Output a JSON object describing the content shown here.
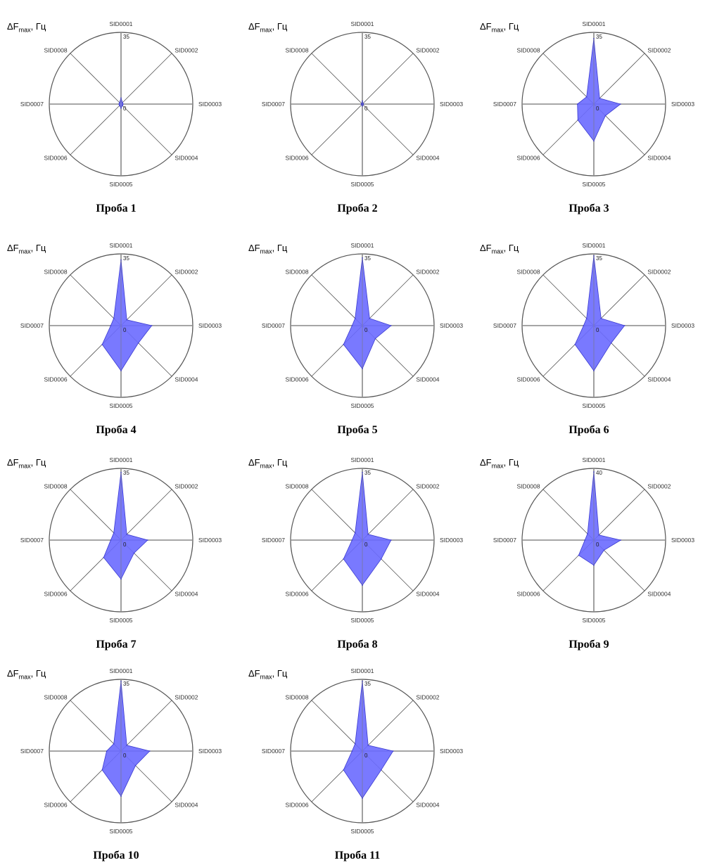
{
  "axis_label": {
    "prefix": "ΔF",
    "sub": "max",
    "suffix": ", Гц"
  },
  "colors": {
    "fill": "#6a6aff",
    "stroke": "#3a3ad0",
    "grid": "#555555",
    "axis": "#888888"
  },
  "chart_data": [
    {
      "type": "radar",
      "caption": "Проба 1",
      "categories": [
        "SID0001",
        "SID0002",
        "SID0003",
        "SID0004",
        "SID0005",
        "SID0006",
        "SID0007",
        "SID0008"
      ],
      "values": [
        3,
        1,
        1,
        1,
        2,
        1,
        1,
        1
      ],
      "tick_min": "0",
      "tick_max": "35",
      "rmax": 35
    },
    {
      "type": "radar",
      "caption": "Проба 2",
      "categories": [
        "SID0001",
        "SID0002",
        "SID0003",
        "SID0004",
        "SID0005",
        "SID0006",
        "SID0007",
        "SID0008"
      ],
      "values": [
        1.5,
        0.5,
        0.5,
        0.5,
        1,
        0.5,
        0.5,
        0.5
      ],
      "tick_min": "0",
      "tick_max": "35",
      "rmax": 35
    },
    {
      "type": "radar",
      "caption": "Проба 3",
      "categories": [
        "SID0001",
        "SID0002",
        "SID0003",
        "SID0004",
        "SID0005",
        "SID0006",
        "SID0007",
        "SID0008"
      ],
      "values": [
        32,
        4,
        13,
        8,
        18,
        11,
        8,
        5
      ],
      "tick_min": "0",
      "tick_max": "35",
      "rmax": 35
    },
    {
      "type": "radar",
      "caption": "Проба 4",
      "categories": [
        "SID0001",
        "SID0002",
        "SID0003",
        "SID0004",
        "SID0005",
        "SID0006",
        "SID0007",
        "SID0008"
      ],
      "values": [
        32,
        4,
        15,
        12,
        22,
        13,
        5,
        5
      ],
      "tick_min": "0",
      "tick_max": "35",
      "rmax": 35
    },
    {
      "type": "radar",
      "caption": "Проба 5",
      "categories": [
        "SID0001",
        "SID0002",
        "SID0003",
        "SID0004",
        "SID0005",
        "SID0006",
        "SID0007",
        "SID0008"
      ],
      "values": [
        33,
        5,
        14,
        9,
        21,
        13,
        5,
        5
      ],
      "tick_min": "0",
      "tick_max": "35",
      "rmax": 35
    },
    {
      "type": "radar",
      "caption": "Проба 6",
      "categories": [
        "SID0001",
        "SID0002",
        "SID0003",
        "SID0004",
        "SID0005",
        "SID0006",
        "SID0007",
        "SID0008"
      ],
      "values": [
        34,
        5,
        15,
        12,
        22,
        13,
        5,
        5
      ],
      "tick_min": "0",
      "tick_max": "35",
      "rmax": 35
    },
    {
      "type": "radar",
      "caption": "Проба 7",
      "categories": [
        "SID0001",
        "SID0002",
        "SID0003",
        "SID0004",
        "SID0005",
        "SID0006",
        "SID0007",
        "SID0008"
      ],
      "values": [
        33,
        4,
        13,
        9,
        19,
        12,
        5,
        5
      ],
      "tick_min": "0",
      "tick_max": "35",
      "rmax": 35
    },
    {
      "type": "radar",
      "caption": "Проба 8",
      "categories": [
        "SID0001",
        "SID0002",
        "SID0003",
        "SID0004",
        "SID0005",
        "SID0006",
        "SID0007",
        "SID0008"
      ],
      "values": [
        33,
        4,
        14,
        13,
        22,
        13,
        5,
        5
      ],
      "tick_min": "0",
      "tick_max": "35",
      "rmax": 35
    },
    {
      "type": "radar",
      "caption": "Проба 9",
      "categories": [
        "SID0001",
        "SID0002",
        "SID0003",
        "SID0004",
        "SID0005",
        "SID0006",
        "SID0007",
        "SID0008"
      ],
      "values": [
        38,
        4,
        15,
        8,
        14,
        12,
        5,
        5
      ],
      "tick_min": "0",
      "tick_max": "40",
      "rmax": 40
    },
    {
      "type": "radar",
      "caption": "Проба 10",
      "categories": [
        "SID0001",
        "SID0002",
        "SID0003",
        "SID0004",
        "SID0005",
        "SID0006",
        "SID0007",
        "SID0008"
      ],
      "values": [
        34,
        4,
        14,
        10,
        22,
        13,
        7,
        5
      ],
      "tick_min": "0",
      "tick_max": "35",
      "rmax": 35
    },
    {
      "type": "radar",
      "caption": "Проба 11",
      "categories": [
        "SID0001",
        "SID0002",
        "SID0003",
        "SID0004",
        "SID0005",
        "SID0006",
        "SID0007",
        "SID0008"
      ],
      "values": [
        34,
        4,
        15,
        13,
        23,
        13,
        5,
        5
      ],
      "tick_min": "0",
      "tick_max": "35",
      "rmax": 35
    }
  ]
}
